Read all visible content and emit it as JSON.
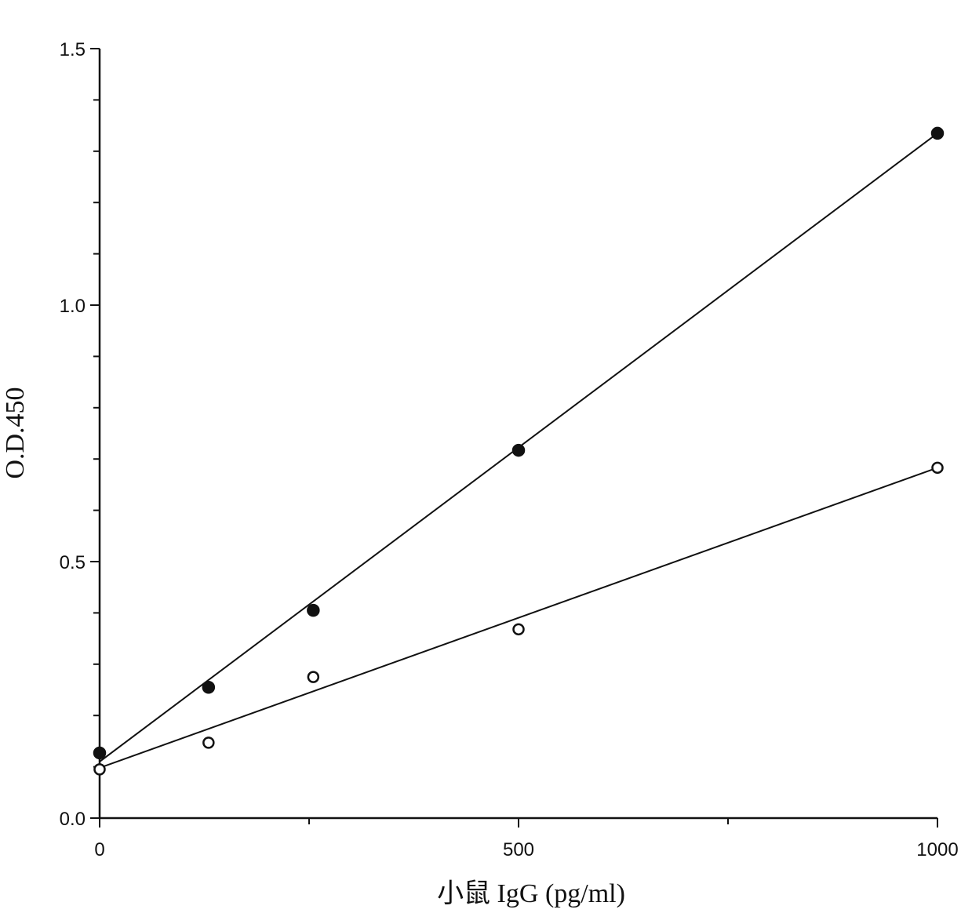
{
  "chart_data": {
    "type": "scatter",
    "title": "",
    "xlabel": "小鼠 IgG (pg/ml)",
    "ylabel": "O.D.450",
    "xlim": [
      0,
      1000
    ],
    "ylim": [
      0,
      1.5
    ],
    "x_ticks": [
      0,
      500,
      1000
    ],
    "x_tick_labels": [
      "0",
      "500",
      "1000"
    ],
    "x_minor_ticks": [
      250,
      750
    ],
    "y_ticks": [
      0.0,
      0.5,
      1.0,
      1.5
    ],
    "y_tick_labels": [
      "0.0",
      "0.5",
      "1.0",
      "1.5"
    ],
    "y_minor_ticks": [
      0.1,
      0.2,
      0.3,
      0.4,
      0.6,
      0.7,
      0.8,
      0.9,
      1.1,
      1.2,
      1.3,
      1.4
    ],
    "grid": false,
    "legend": "none",
    "series": [
      {
        "marker": "filled-circle",
        "color": "#111111",
        "x": [
          0,
          130,
          255,
          500,
          1000
        ],
        "y": [
          0.127,
          0.255,
          0.405,
          0.717,
          1.335
        ],
        "fit_line": {
          "x": [
            0,
            1000
          ],
          "y": [
            0.11,
            1.335
          ]
        }
      },
      {
        "marker": "open-circle",
        "color": "#111111",
        "x": [
          0,
          130,
          255,
          500,
          1000
        ],
        "y": [
          0.095,
          0.147,
          0.275,
          0.368,
          0.683
        ],
        "fit_line": {
          "x": [
            0,
            1000
          ],
          "y": [
            0.098,
            0.683
          ]
        }
      }
    ]
  }
}
